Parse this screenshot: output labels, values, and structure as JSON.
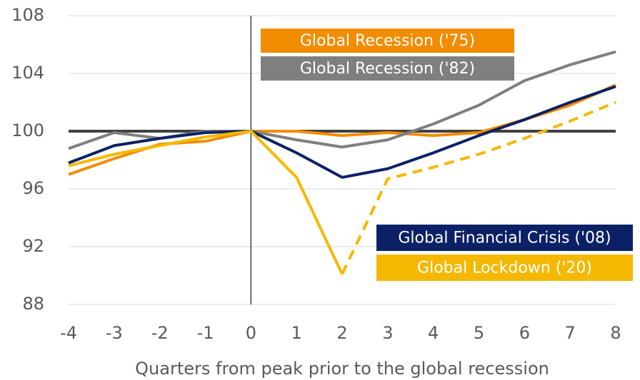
{
  "chart_data": {
    "type": "line",
    "x_label": "Quarters from peak prior to the global recession",
    "x": [
      -4,
      -3,
      -2,
      -1,
      0,
      1,
      2,
      3,
      4,
      5,
      6,
      7,
      8
    ],
    "xlim": [
      -4,
      8
    ],
    "xticks": [
      -4,
      -3,
      -2,
      -1,
      0,
      1,
      2,
      3,
      4,
      5,
      6,
      7,
      8
    ],
    "ylim": [
      88,
      108
    ],
    "yticks": [
      88,
      92,
      96,
      100,
      104,
      108
    ],
    "grid": true,
    "reference_y": 100,
    "reference_x": 0,
    "series": [
      {
        "name": "Global Recession ('75)",
        "color": "#f28c00",
        "values": [
          97.0,
          98.1,
          99.1,
          99.3,
          100,
          100,
          99.7,
          99.9,
          99.7,
          99.9,
          100.8,
          101.8,
          103.2
        ]
      },
      {
        "name": "Global Recession ('82)",
        "color": "#7f7f7f",
        "values": [
          98.8,
          99.9,
          99.5,
          100,
          100,
          99.4,
          98.9,
          99.4,
          100.5,
          101.8,
          103.5,
          104.6,
          105.5
        ]
      },
      {
        "name": "Global Financial Crisis ('08)",
        "color": "#0c2165",
        "values": [
          97.8,
          99.0,
          99.5,
          99.9,
          100,
          98.5,
          96.8,
          97.4,
          98.5,
          99.7,
          100.8,
          102.0,
          103.1
        ]
      },
      {
        "name": "Global Lockdown ('20)",
        "color": "#f5b800",
        "dashed_from_index": 6,
        "values": [
          97.6,
          98.4,
          99.0,
          99.6,
          100,
          96.8,
          90.1,
          96.7,
          97.5,
          98.4,
          99.5,
          100.7,
          102.0
        ]
      }
    ]
  }
}
